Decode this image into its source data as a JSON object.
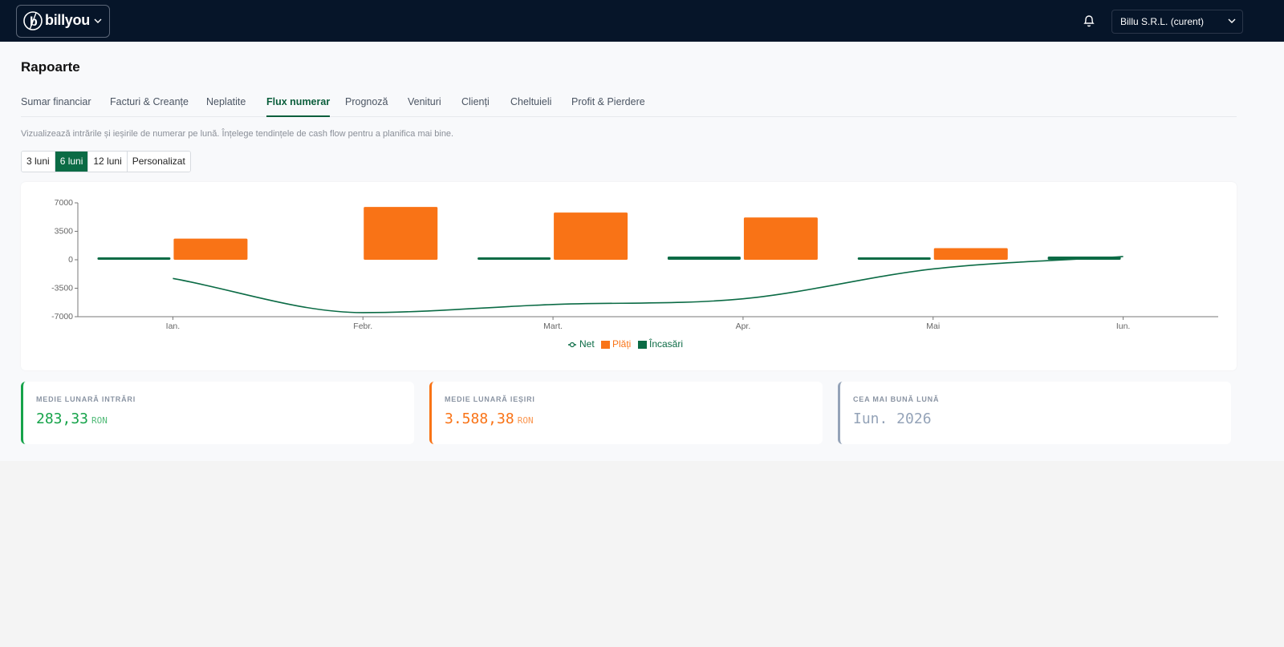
{
  "header": {
    "logo": "billyou",
    "company": "Billu S.R.L. (curent)"
  },
  "page": {
    "title": "Rapoarte",
    "tabs": [
      "Sumar financiar",
      "Facturi & Creanțe",
      "Neplatite",
      "Flux numerar",
      "Prognoză",
      "Venituri",
      "Clienți",
      "Cheltuieli",
      "Profit & Pierdere"
    ],
    "active_tab": 3,
    "description": "Vizualizează intrările și ieșirile de numerar pe lună. Înțelege tendințele de cash flow pentru a planifica mai bine.",
    "ranges": [
      "3 luni",
      "6 luni",
      "12 luni",
      "Personalizat"
    ],
    "active_range": 1,
    "stats": [
      {
        "label": "MEDIE LUNARĂ INTRĂRI",
        "value": "283,33",
        "unit": "RON",
        "color": "#16a34a"
      },
      {
        "label": "MEDIE LUNARĂ IEȘIRI",
        "value": "3.588,38",
        "unit": "RON",
        "color": "#f97316"
      },
      {
        "label": "CEA MAI BUNĂ LUNĂ",
        "value": "Iun. 2026",
        "color": "#94a3b8"
      }
    ]
  },
  "chart_data": {
    "type": "bar",
    "categories": [
      "Ian.",
      "Febr.",
      "Mart.",
      "Apr.",
      "Mai",
      "Iun."
    ],
    "series": [
      {
        "name": "Net",
        "type": "line",
        "color": "#0b6b45",
        "values": [
          -2300,
          -6500,
          -5500,
          -4800,
          -1130,
          400
        ]
      },
      {
        "name": "Plăți",
        "type": "bar",
        "color": "#f97316",
        "values": [
          2600,
          6500,
          5800,
          5200,
          1430,
          0
        ]
      },
      {
        "name": "Încasări",
        "type": "bar",
        "color": "#0b6b45",
        "values": [
          300,
          0,
          300,
          400,
          300,
          400
        ]
      }
    ],
    "ylim": [
      -7000,
      7000
    ],
    "yticks": [
      7000,
      3500,
      0,
      -3500,
      -7000
    ],
    "legend": "bottom"
  }
}
